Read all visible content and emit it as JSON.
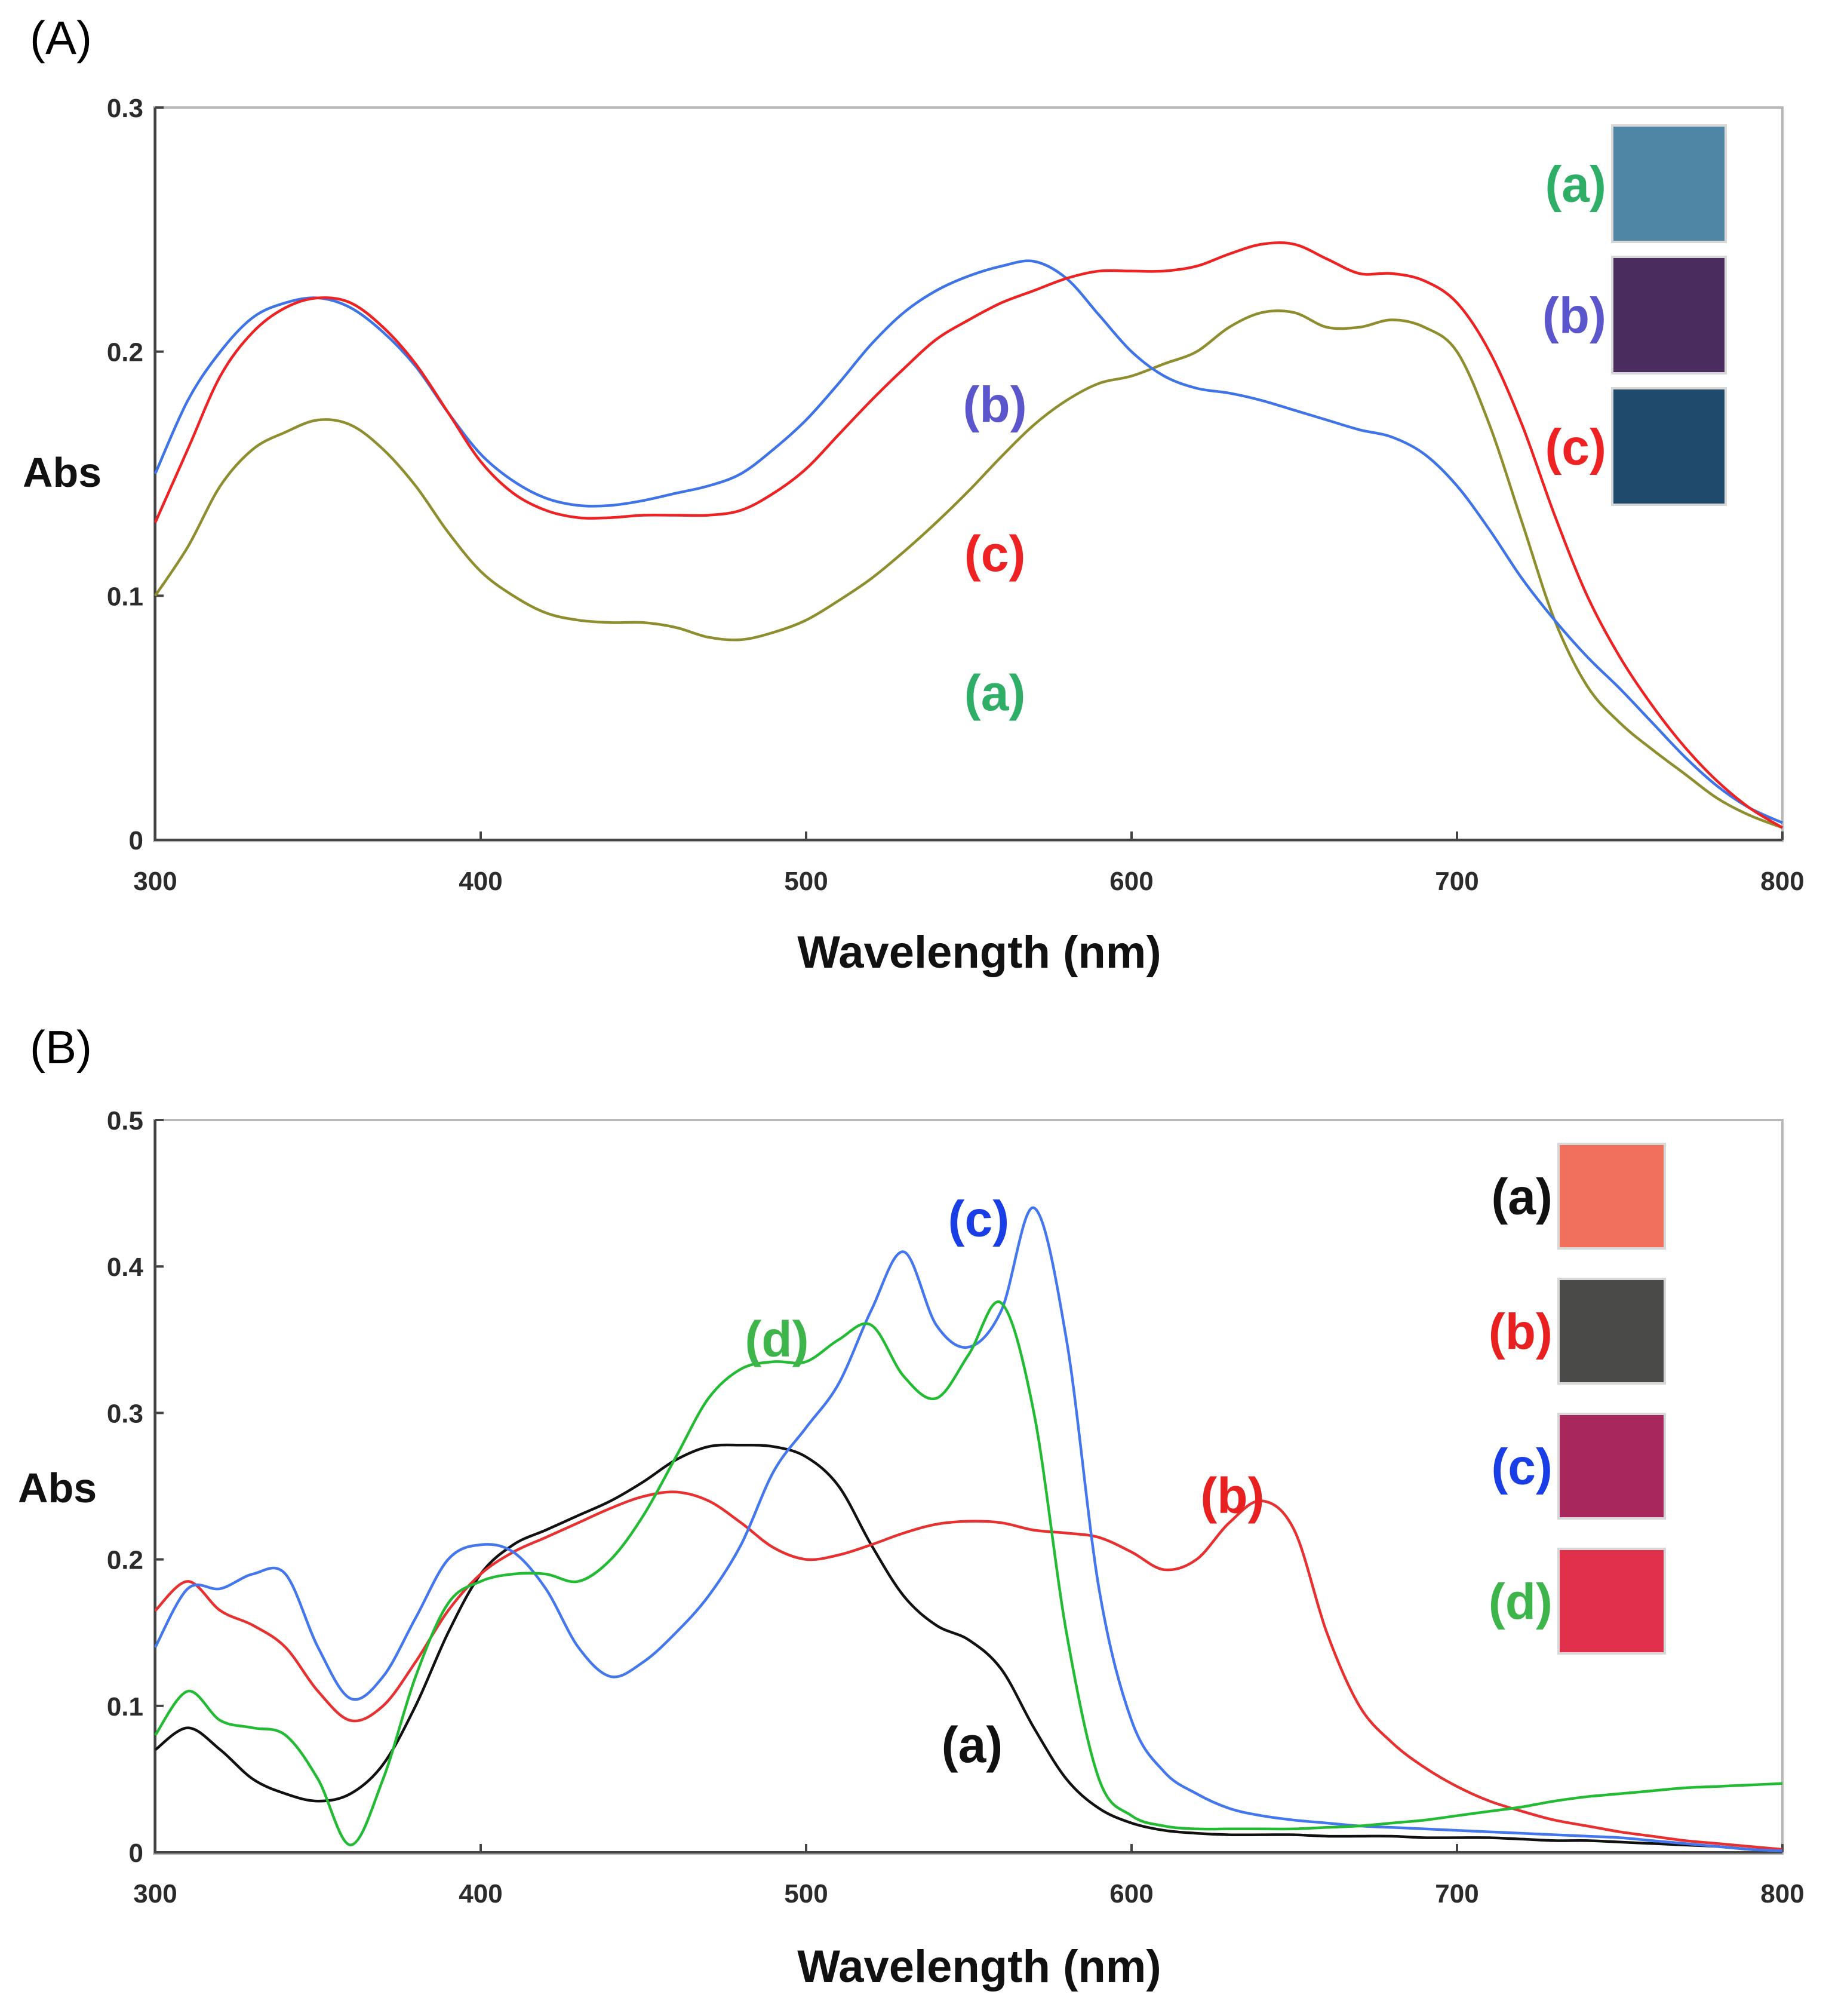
{
  "chart_data": [
    {
      "panel": "(A)",
      "type": "line",
      "xlabel": "Wavelength (nm)",
      "ylabel": "Abs",
      "xlim": [
        300,
        800
      ],
      "ylim": [
        0,
        0.3
      ],
      "xticks": [
        300,
        400,
        500,
        600,
        700,
        800
      ],
      "yticks": [
        0,
        0.1,
        0.2,
        0.3
      ],
      "ytick_labels": [
        "0",
        "0.1",
        "0.2",
        "0.3"
      ],
      "xtick_labels": [
        "300",
        "400",
        "500",
        "600",
        "700",
        "800"
      ],
      "series": [
        {
          "name": "(a)",
          "color": "#8e8e2e",
          "label_color": "#2fae68",
          "swatch_color": "#4f86a6",
          "label_at": [
            558,
            0.06
          ],
          "x": [
            300,
            310,
            320,
            330,
            340,
            350,
            360,
            370,
            380,
            390,
            400,
            410,
            420,
            430,
            440,
            450,
            460,
            470,
            480,
            490,
            500,
            510,
            520,
            530,
            540,
            550,
            560,
            570,
            580,
            590,
            600,
            610,
            620,
            630,
            640,
            650,
            660,
            670,
            680,
            690,
            700,
            710,
            720,
            730,
            740,
            750,
            760,
            770,
            780,
            790,
            800
          ],
          "y": [
            0.1,
            0.12,
            0.145,
            0.16,
            0.167,
            0.172,
            0.17,
            0.16,
            0.145,
            0.126,
            0.11,
            0.1,
            0.093,
            0.09,
            0.089,
            0.089,
            0.087,
            0.083,
            0.082,
            0.085,
            0.09,
            0.098,
            0.107,
            0.118,
            0.13,
            0.143,
            0.157,
            0.17,
            0.18,
            0.187,
            0.19,
            0.195,
            0.2,
            0.21,
            0.216,
            0.216,
            0.21,
            0.21,
            0.213,
            0.21,
            0.2,
            0.17,
            0.13,
            0.09,
            0.063,
            0.048,
            0.037,
            0.027,
            0.017,
            0.01,
            0.005
          ]
        },
        {
          "name": "(b)",
          "color": "#3f74e8",
          "label_color": "#5b56cc",
          "swatch_color": "#4b2c5e",
          "label_at": [
            558,
            0.178
          ],
          "x": [
            300,
            310,
            320,
            330,
            340,
            350,
            360,
            370,
            380,
            390,
            400,
            410,
            420,
            430,
            440,
            450,
            460,
            470,
            480,
            490,
            500,
            510,
            520,
            530,
            540,
            550,
            560,
            570,
            580,
            590,
            600,
            610,
            620,
            630,
            640,
            650,
            660,
            670,
            680,
            690,
            700,
            710,
            720,
            730,
            740,
            750,
            760,
            770,
            780,
            790,
            800
          ],
          "y": [
            0.15,
            0.18,
            0.2,
            0.214,
            0.22,
            0.222,
            0.218,
            0.208,
            0.194,
            0.175,
            0.158,
            0.147,
            0.14,
            0.137,
            0.137,
            0.139,
            0.142,
            0.145,
            0.15,
            0.16,
            0.172,
            0.187,
            0.203,
            0.216,
            0.225,
            0.231,
            0.235,
            0.237,
            0.23,
            0.215,
            0.2,
            0.19,
            0.185,
            0.183,
            0.18,
            0.176,
            0.172,
            0.168,
            0.165,
            0.158,
            0.145,
            0.127,
            0.107,
            0.09,
            0.075,
            0.062,
            0.048,
            0.034,
            0.022,
            0.013,
            0.007
          ]
        },
        {
          "name": "(c)",
          "color": "#ee2222",
          "label_color": "#ee2222",
          "swatch_color": "#1f4a6c",
          "label_at": [
            558,
            0.117
          ],
          "x": [
            300,
            310,
            320,
            330,
            340,
            350,
            360,
            370,
            380,
            390,
            400,
            410,
            420,
            430,
            440,
            450,
            460,
            470,
            480,
            490,
            500,
            510,
            520,
            530,
            540,
            550,
            560,
            570,
            580,
            590,
            600,
            610,
            620,
            630,
            640,
            650,
            660,
            670,
            680,
            690,
            700,
            710,
            720,
            730,
            740,
            750,
            760,
            770,
            780,
            790,
            800
          ],
          "y": [
            0.13,
            0.16,
            0.19,
            0.208,
            0.218,
            0.222,
            0.22,
            0.21,
            0.195,
            0.175,
            0.155,
            0.142,
            0.135,
            0.132,
            0.132,
            0.133,
            0.133,
            0.133,
            0.135,
            0.142,
            0.152,
            0.166,
            0.18,
            0.193,
            0.205,
            0.213,
            0.22,
            0.225,
            0.23,
            0.233,
            0.233,
            0.233,
            0.235,
            0.24,
            0.244,
            0.244,
            0.238,
            0.232,
            0.232,
            0.229,
            0.22,
            0.2,
            0.17,
            0.133,
            0.1,
            0.075,
            0.055,
            0.038,
            0.024,
            0.013,
            0.005
          ]
        }
      ]
    },
    {
      "panel": "(B)",
      "type": "line",
      "xlabel": "Wavelength (nm)",
      "ylabel": "Abs",
      "xlim": [
        300,
        800
      ],
      "ylim": [
        0,
        0.5
      ],
      "xticks": [
        300,
        400,
        500,
        600,
        700,
        800
      ],
      "yticks": [
        0,
        0.1,
        0.2,
        0.3,
        0.4,
        0.5
      ],
      "ytick_labels": [
        "0",
        "0.1",
        "0.2",
        "0.3",
        "0.4",
        "0.5"
      ],
      "xtick_labels": [
        "300",
        "400",
        "500",
        "600",
        "700",
        "800"
      ],
      "series": [
        {
          "name": "(a)",
          "color": "#111111",
          "label_color": "#111111",
          "swatch_color": "#f0705c",
          "label_at": [
            551,
            0.073
          ],
          "x": [
            300,
            310,
            320,
            330,
            340,
            350,
            360,
            370,
            380,
            390,
            400,
            410,
            420,
            430,
            440,
            450,
            460,
            470,
            480,
            490,
            500,
            510,
            520,
            530,
            540,
            550,
            560,
            570,
            580,
            590,
            600,
            610,
            620,
            630,
            640,
            650,
            660,
            670,
            680,
            690,
            700,
            710,
            720,
            730,
            740,
            750,
            760,
            770,
            780,
            790,
            800
          ],
          "y": [
            0.07,
            0.085,
            0.07,
            0.05,
            0.04,
            0.035,
            0.04,
            0.06,
            0.1,
            0.15,
            0.19,
            0.21,
            0.22,
            0.23,
            0.24,
            0.253,
            0.268,
            0.277,
            0.278,
            0.277,
            0.27,
            0.25,
            0.21,
            0.175,
            0.155,
            0.145,
            0.125,
            0.085,
            0.05,
            0.03,
            0.02,
            0.015,
            0.013,
            0.012,
            0.012,
            0.012,
            0.011,
            0.011,
            0.011,
            0.01,
            0.01,
            0.01,
            0.009,
            0.008,
            0.008,
            0.007,
            0.006,
            0.005,
            0.004,
            0.002,
            0.001
          ]
        },
        {
          "name": "(b)",
          "color": "#e83030",
          "label_color": "#e82020",
          "swatch_color": "#4a4a48",
          "label_at": [
            631,
            0.243
          ],
          "x": [
            300,
            310,
            320,
            330,
            340,
            350,
            360,
            370,
            380,
            390,
            400,
            410,
            420,
            430,
            440,
            450,
            460,
            470,
            480,
            490,
            500,
            510,
            520,
            530,
            540,
            550,
            560,
            570,
            580,
            590,
            600,
            610,
            620,
            630,
            640,
            650,
            660,
            670,
            680,
            690,
            700,
            710,
            720,
            730,
            740,
            750,
            760,
            770,
            780,
            790,
            800
          ],
          "y": [
            0.165,
            0.185,
            0.165,
            0.155,
            0.14,
            0.11,
            0.09,
            0.1,
            0.13,
            0.165,
            0.19,
            0.205,
            0.215,
            0.225,
            0.235,
            0.243,
            0.246,
            0.24,
            0.225,
            0.208,
            0.2,
            0.203,
            0.21,
            0.218,
            0.224,
            0.226,
            0.225,
            0.22,
            0.218,
            0.215,
            0.205,
            0.193,
            0.2,
            0.225,
            0.24,
            0.22,
            0.15,
            0.1,
            0.075,
            0.058,
            0.045,
            0.035,
            0.028,
            0.022,
            0.018,
            0.014,
            0.011,
            0.008,
            0.006,
            0.004,
            0.002
          ]
        },
        {
          "name": "(c)",
          "color": "#4477ee",
          "label_color": "#1a3ee6",
          "swatch_color": "#a8285e",
          "label_at": [
            553,
            0.432
          ],
          "x": [
            300,
            310,
            320,
            330,
            340,
            350,
            360,
            370,
            380,
            390,
            400,
            410,
            420,
            430,
            440,
            450,
            460,
            470,
            480,
            490,
            500,
            510,
            520,
            530,
            540,
            550,
            560,
            570,
            580,
            590,
            600,
            610,
            620,
            630,
            640,
            650,
            660,
            670,
            680,
            690,
            700,
            710,
            720,
            730,
            740,
            750,
            760,
            770,
            780,
            790,
            800
          ],
          "y": [
            0.14,
            0.18,
            0.18,
            0.19,
            0.19,
            0.14,
            0.105,
            0.12,
            0.16,
            0.2,
            0.21,
            0.205,
            0.18,
            0.14,
            0.12,
            0.13,
            0.15,
            0.175,
            0.21,
            0.26,
            0.29,
            0.32,
            0.37,
            0.41,
            0.36,
            0.345,
            0.37,
            0.44,
            0.35,
            0.18,
            0.09,
            0.055,
            0.04,
            0.03,
            0.025,
            0.022,
            0.02,
            0.018,
            0.017,
            0.016,
            0.015,
            0.014,
            0.013,
            0.012,
            0.011,
            0.01,
            0.008,
            0.006,
            0.004,
            0.002,
            0.001
          ]
        },
        {
          "name": "(d)",
          "color": "#22bb33",
          "label_color": "#3db54a",
          "swatch_color": "#e0304c",
          "label_at": [
            491,
            0.35
          ],
          "x": [
            300,
            310,
            320,
            330,
            340,
            350,
            360,
            370,
            380,
            390,
            400,
            410,
            420,
            430,
            440,
            450,
            460,
            470,
            480,
            490,
            500,
            510,
            520,
            530,
            540,
            550,
            560,
            570,
            580,
            590,
            600,
            610,
            620,
            630,
            640,
            650,
            660,
            670,
            680,
            690,
            700,
            710,
            720,
            730,
            740,
            750,
            760,
            770,
            780,
            790,
            800
          ],
          "y": [
            0.08,
            0.11,
            0.09,
            0.085,
            0.08,
            0.05,
            0.005,
            0.05,
            0.12,
            0.17,
            0.185,
            0.19,
            0.19,
            0.185,
            0.2,
            0.23,
            0.27,
            0.31,
            0.33,
            0.335,
            0.335,
            0.35,
            0.36,
            0.325,
            0.31,
            0.34,
            0.375,
            0.3,
            0.15,
            0.05,
            0.025,
            0.018,
            0.016,
            0.016,
            0.016,
            0.016,
            0.017,
            0.018,
            0.02,
            0.022,
            0.025,
            0.028,
            0.031,
            0.035,
            0.038,
            0.04,
            0.042,
            0.044,
            0.045,
            0.046,
            0.047
          ]
        }
      ]
    }
  ]
}
